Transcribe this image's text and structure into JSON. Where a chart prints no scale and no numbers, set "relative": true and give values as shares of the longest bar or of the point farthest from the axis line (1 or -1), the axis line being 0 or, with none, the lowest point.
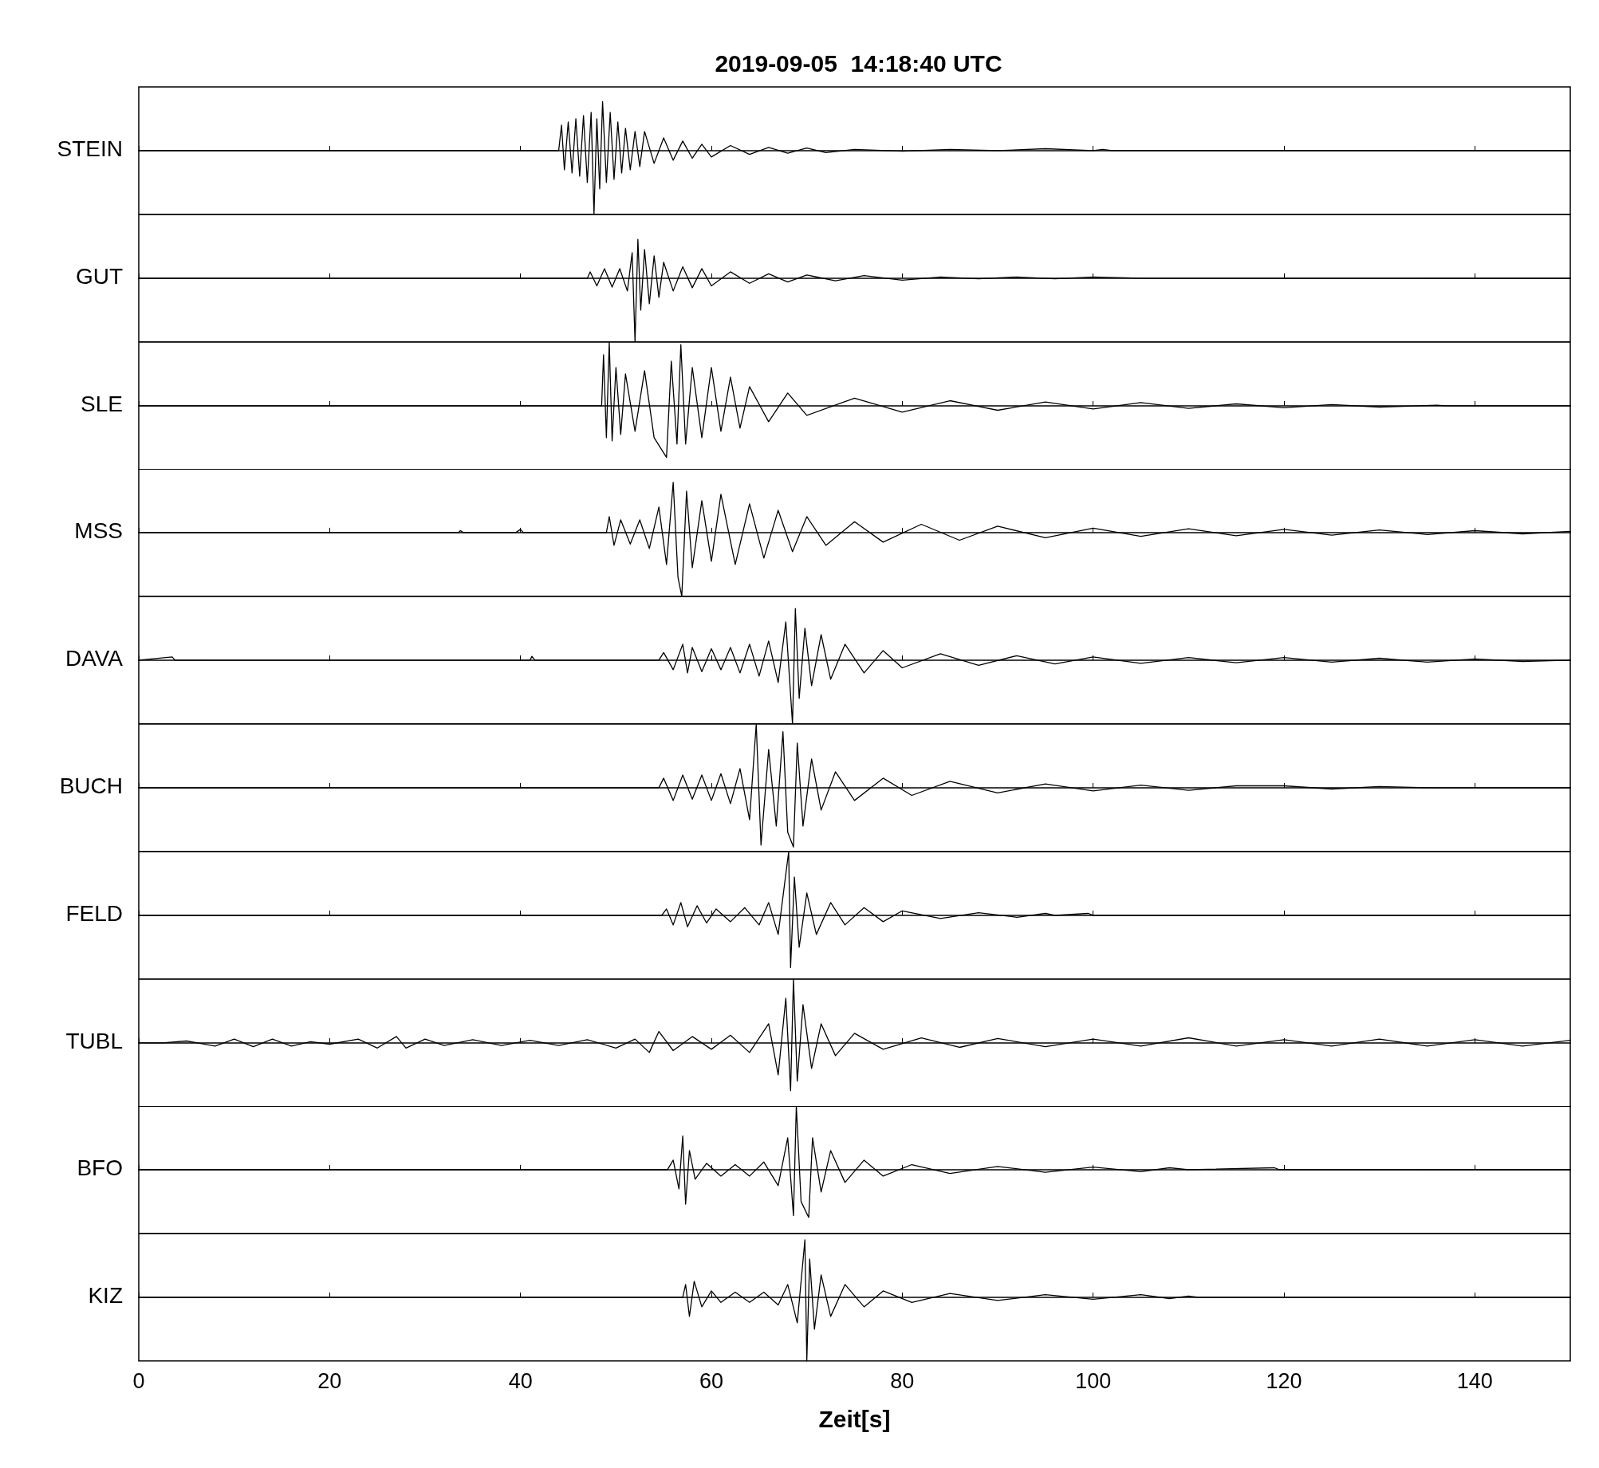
{
  "chart_data": [
    {
      "type": "line",
      "relative": true,
      "title": "2019-09-05  14:18:40 UTC",
      "ylabel": "STEIN",
      "xlim": [
        0,
        150
      ],
      "xticks": [
        0,
        20,
        40,
        60,
        80,
        100,
        120,
        140
      ],
      "tick_labels": false,
      "marker": "none",
      "line_style": "solid",
      "series": [
        {
          "color": "#000000",
          "x": [
            0,
            44,
            44.3,
            44.6,
            45,
            45.4,
            45.8,
            46.2,
            46.6,
            47,
            47.4,
            47.7,
            48,
            48.3,
            48.6,
            49,
            49.4,
            49.8,
            50.2,
            50.6,
            51,
            51.5,
            52,
            52.5,
            53,
            54,
            55,
            56,
            57,
            58,
            59,
            60,
            62,
            64,
            66,
            68,
            70,
            72,
            75,
            80,
            85,
            90,
            95,
            100,
            101,
            102,
            150
          ],
          "values": [
            0,
            0,
            0.4,
            -0.3,
            0.45,
            -0.35,
            0.5,
            -0.4,
            0.55,
            -0.5,
            0.6,
            -1,
            0.5,
            -0.6,
            0.77,
            -0.5,
            0.6,
            -0.45,
            0.45,
            -0.35,
            0.35,
            -0.3,
            0.3,
            -0.25,
            0.3,
            -0.2,
            0.2,
            -0.15,
            0.15,
            -0.12,
            0.1,
            -0.1,
            0.08,
            -0.06,
            0.05,
            -0.04,
            0.04,
            -0.03,
            0.02,
            -0.01,
            0.02,
            0,
            0.03,
            0,
            0.02,
            0,
            0
          ]
        }
      ]
    },
    {
      "type": "line",
      "relative": true,
      "ylabel": "GUT",
      "xlim": [
        0,
        150
      ],
      "xticks": [
        0,
        20,
        40,
        60,
        80,
        100,
        120,
        140
      ],
      "tick_labels": false,
      "marker": "none",
      "line_style": "solid",
      "series": [
        {
          "color": "#000000",
          "x": [
            0,
            47,
            47.3,
            48,
            48.8,
            49.6,
            50.4,
            51.2,
            51.7,
            52,
            52.3,
            52.6,
            53,
            53.5,
            54,
            54.5,
            55,
            56,
            57,
            58,
            59,
            60,
            62,
            64,
            66,
            68,
            70,
            73,
            76,
            80,
            84,
            88,
            92,
            96,
            100,
            105,
            150
          ],
          "values": [
            0,
            0,
            0.1,
            -0.12,
            0.15,
            -0.14,
            0.15,
            -0.2,
            0.4,
            -1,
            0.61,
            -0.5,
            0.45,
            -0.4,
            0.35,
            -0.3,
            0.25,
            -0.2,
            0.18,
            -0.15,
            0.15,
            -0.12,
            0.1,
            -0.08,
            0.07,
            -0.06,
            0.05,
            -0.04,
            0.04,
            -0.03,
            0.02,
            -0.01,
            0.02,
            -0.01,
            0.02,
            0,
            0
          ]
        }
      ]
    },
    {
      "type": "line",
      "relative": true,
      "ylabel": "SLE",
      "xlim": [
        0,
        150
      ],
      "xticks": [
        0,
        20,
        40,
        60,
        80,
        100,
        120,
        140
      ],
      "tick_labels": false,
      "marker": "none",
      "line_style": "solid",
      "series": [
        {
          "color": "#000000",
          "x": [
            0,
            48.5,
            48.7,
            49,
            49.3,
            49.6,
            50,
            50.5,
            51,
            52,
            53,
            54,
            55.3,
            55.8,
            56.4,
            56.8,
            57.3,
            58,
            59,
            60,
            61,
            62,
            63,
            64,
            66,
            68,
            70,
            75,
            80,
            85,
            90,
            95,
            100,
            105,
            110,
            115,
            120,
            125,
            130,
            136,
            137,
            150
          ],
          "values": [
            0,
            0,
            0.8,
            -0.5,
            1,
            -0.55,
            0.6,
            -0.45,
            0.5,
            -0.4,
            0.55,
            -0.5,
            -0.81,
            0.7,
            -0.6,
            0.96,
            -0.6,
            0.6,
            -0.5,
            0.6,
            -0.4,
            0.45,
            -0.35,
            0.3,
            -0.25,
            0.2,
            -0.15,
            0.12,
            -0.1,
            0.08,
            -0.07,
            0.06,
            -0.05,
            0.05,
            -0.04,
            0.03,
            -0.03,
            0.02,
            -0.02,
            0.01,
            0,
            0
          ]
        }
      ]
    },
    {
      "type": "line",
      "relative": true,
      "ylabel": "MSS",
      "xlim": [
        0,
        150
      ],
      "xticks": [
        0,
        20,
        40,
        60,
        80,
        100,
        120,
        140
      ],
      "tick_labels": false,
      "marker": "none",
      "line_style": "solid",
      "series": [
        {
          "color": "#000000",
          "x": [
            0,
            33.5,
            33.7,
            34,
            39.5,
            40,
            40.3,
            49,
            49.3,
            49.8,
            50.5,
            51.5,
            52.5,
            53.5,
            54.5,
            55.3,
            56,
            56.5,
            56.9,
            57.4,
            58,
            59,
            60,
            61,
            62.5,
            64,
            65.5,
            67,
            68.5,
            70,
            72,
            75,
            78,
            82,
            86,
            90,
            95,
            100,
            105,
            110,
            115,
            120,
            125,
            130,
            135,
            140,
            145,
            150
          ],
          "values": [
            0,
            0,
            0.03,
            0,
            0,
            0.05,
            0,
            0,
            0.25,
            -0.2,
            0.2,
            -0.18,
            0.2,
            -0.25,
            0.4,
            -0.5,
            0.79,
            -0.7,
            -1,
            0.65,
            -0.55,
            0.5,
            -0.45,
            0.6,
            -0.5,
            0.45,
            -0.4,
            0.35,
            -0.3,
            0.25,
            -0.2,
            0.17,
            -0.15,
            0.13,
            -0.12,
            0.1,
            -0.08,
            0.07,
            -0.06,
            0.06,
            -0.05,
            0.05,
            -0.04,
            0.04,
            -0.03,
            0.03,
            -0.02,
            0.02
          ]
        }
      ]
    },
    {
      "type": "line",
      "relative": true,
      "ylabel": "DAVA",
      "xlim": [
        0,
        150
      ],
      "xticks": [
        0,
        20,
        40,
        60,
        80,
        100,
        120,
        140
      ],
      "tick_labels": false,
      "marker": "none",
      "line_style": "solid",
      "series": [
        {
          "color": "#000000",
          "x": [
            0,
            3.5,
            3.8,
            41,
            41.2,
            41.5,
            54.5,
            55,
            56,
            57,
            57.5,
            58,
            59,
            60,
            61,
            62,
            63,
            64,
            65,
            66,
            67,
            67.8,
            68.5,
            68.8,
            69.2,
            69.8,
            70.5,
            71.5,
            72.5,
            74,
            76,
            78,
            80,
            84,
            88,
            92,
            96,
            100,
            105,
            110,
            115,
            120,
            125,
            130,
            135,
            140,
            145,
            150
          ],
          "values": [
            0,
            0.05,
            0,
            0,
            0.06,
            0,
            0,
            0.12,
            -0.15,
            0.25,
            -0.2,
            0.2,
            -0.18,
            0.18,
            -0.15,
            0.2,
            -0.2,
            0.25,
            -0.25,
            0.3,
            -0.35,
            0.6,
            -1,
            0.81,
            -0.6,
            0.5,
            -0.4,
            0.4,
            -0.3,
            0.25,
            -0.2,
            0.15,
            -0.12,
            0.1,
            -0.08,
            0.07,
            -0.06,
            0.05,
            -0.05,
            0.04,
            -0.04,
            0.04,
            -0.03,
            0.03,
            -0.03,
            0.02,
            -0.02,
            0
          ]
        }
      ]
    },
    {
      "type": "line",
      "relative": true,
      "ylabel": "BUCH",
      "xlim": [
        0,
        150
      ],
      "xticks": [
        0,
        20,
        40,
        60,
        80,
        100,
        120,
        140
      ],
      "tick_labels": false,
      "marker": "none",
      "line_style": "solid",
      "series": [
        {
          "color": "#000000",
          "x": [
            0,
            54.5,
            55,
            56,
            57,
            58,
            59,
            60,
            61,
            62,
            63,
            64,
            64.7,
            65.2,
            66,
            66.8,
            67.5,
            68,
            68.6,
            69,
            69.6,
            70.5,
            71.5,
            73,
            75,
            78,
            81,
            85,
            90,
            95,
            100,
            105,
            110,
            115,
            120,
            125,
            130,
            135,
            150
          ],
          "values": [
            0,
            0,
            0.15,
            -0.2,
            0.2,
            -0.18,
            0.2,
            -0.2,
            0.22,
            -0.25,
            0.3,
            -0.5,
            1,
            -0.9,
            0.6,
            -0.6,
            0.88,
            -0.7,
            -0.93,
            0.7,
            -0.6,
            0.45,
            -0.35,
            0.25,
            -0.2,
            0.15,
            -0.12,
            0.1,
            -0.08,
            0.06,
            -0.05,
            0.04,
            -0.04,
            0.03,
            0.03,
            -0.02,
            0.02,
            0,
            0
          ]
        }
      ]
    },
    {
      "type": "line",
      "relative": true,
      "ylabel": "FELD",
      "xlim": [
        0,
        150
      ],
      "xticks": [
        0,
        20,
        40,
        60,
        80,
        100,
        120,
        140
      ],
      "tick_labels": false,
      "marker": "none",
      "line_style": "solid",
      "series": [
        {
          "color": "#000000",
          "x": [
            0,
            54.8,
            55.3,
            56,
            56.8,
            57.5,
            58.5,
            59.5,
            60.5,
            62,
            63.5,
            65,
            66,
            67,
            68.1,
            68.3,
            68.7,
            69.2,
            70,
            71,
            72.5,
            74,
            76,
            78,
            80,
            84,
            88,
            92,
            95,
            96,
            99.5,
            100,
            150
          ],
          "values": [
            0,
            0,
            0.1,
            -0.15,
            0.2,
            -0.18,
            0.15,
            -0.12,
            0.1,
            -0.1,
            0.12,
            -0.15,
            0.2,
            -0.3,
            1,
            -0.82,
            0.6,
            -0.5,
            0.35,
            -0.3,
            0.2,
            -0.15,
            0.12,
            -0.1,
            0.07,
            -0.05,
            0.04,
            -0.03,
            0.03,
            0,
            0.03,
            0,
            0
          ]
        }
      ]
    },
    {
      "type": "line",
      "relative": true,
      "ylabel": "TUBL",
      "xlim": [
        0,
        150
      ],
      "xticks": [
        0,
        20,
        40,
        60,
        80,
        100,
        120,
        140
      ],
      "tick_labels": false,
      "marker": "none",
      "line_style": "solid",
      "series": [
        {
          "color": "#000000",
          "x": [
            0,
            2.5,
            5,
            8,
            10,
            12,
            14,
            16,
            18,
            20,
            23,
            25,
            27,
            28,
            30,
            32,
            35,
            38,
            41,
            44,
            47,
            50,
            52,
            53.5,
            54.5,
            56,
            58,
            60,
            62,
            64,
            66,
            67,
            67.8,
            68.3,
            68.6,
            69,
            69.6,
            70.5,
            71.5,
            73,
            75,
            78,
            82,
            86,
            90,
            95,
            100,
            105,
            110,
            115,
            120,
            125,
            130,
            135,
            140,
            145,
            150
          ],
          "values": [
            0,
            0,
            0.03,
            -0.05,
            0.06,
            -0.06,
            0.06,
            -0.05,
            0.02,
            -0.02,
            0.06,
            -0.08,
            0.1,
            -0.08,
            0.06,
            -0.04,
            0.05,
            -0.04,
            0.04,
            -0.04,
            0.05,
            -0.08,
            0.06,
            -0.15,
            0.18,
            -0.12,
            0.1,
            -0.1,
            0.12,
            -0.15,
            0.3,
            -0.5,
            0.7,
            -0.75,
            1,
            -0.6,
            0.6,
            -0.4,
            0.3,
            -0.2,
            0.15,
            -0.1,
            0.08,
            -0.07,
            0.07,
            -0.06,
            0.06,
            -0.05,
            0.08,
            -0.05,
            0.05,
            -0.05,
            0.06,
            -0.05,
            0.05,
            -0.05,
            0.04
          ]
        }
      ]
    },
    {
      "type": "line",
      "relative": true,
      "ylabel": "BFO",
      "xlim": [
        0,
        150
      ],
      "xticks": [
        0,
        20,
        40,
        60,
        80,
        100,
        120,
        140
      ],
      "tick_labels": false,
      "marker": "none",
      "line_style": "solid",
      "series": [
        {
          "color": "#000000",
          "x": [
            0,
            55.4,
            56,
            56.6,
            57,
            57.3,
            57.7,
            58.3,
            59.5,
            61,
            62.5,
            64,
            65.5,
            67,
            68,
            68.6,
            68.9,
            69.4,
            70.2,
            70.6,
            71.5,
            72.5,
            74,
            76,
            78,
            81,
            85,
            90,
            95,
            100,
            105,
            108,
            110,
            119,
            119.5,
            150
          ],
          "values": [
            0,
            0,
            0.15,
            -0.3,
            0.53,
            -0.54,
            0.3,
            -0.15,
            0.1,
            -0.1,
            0.08,
            -0.1,
            0.12,
            -0.25,
            0.5,
            -0.72,
            1,
            -0.5,
            -0.75,
            0.5,
            -0.35,
            0.3,
            -0.2,
            0.15,
            -0.1,
            0.08,
            -0.06,
            0.05,
            -0.04,
            0.04,
            -0.03,
            0.03,
            0,
            0.03,
            0,
            0
          ]
        }
      ]
    },
    {
      "type": "line",
      "relative": true,
      "ylabel": "KIZ",
      "xlabel": "Zeit[s]",
      "xlim": [
        0,
        150
      ],
      "xticks": [
        0,
        20,
        40,
        60,
        80,
        100,
        120,
        140
      ],
      "tick_labels": "x",
      "marker": "none",
      "line_style": "solid",
      "series": [
        {
          "color": "#000000",
          "x": [
            0,
            57,
            57.3,
            57.7,
            58.2,
            59,
            60,
            61,
            62.5,
            64,
            65.5,
            67,
            68,
            69,
            69.8,
            70,
            70.3,
            70.8,
            71.5,
            72.5,
            74,
            76,
            78,
            81,
            85,
            90,
            95,
            100,
            105,
            108,
            110,
            111,
            150
          ],
          "values": [
            0,
            0,
            0.2,
            -0.3,
            0.25,
            -0.15,
            0.1,
            -0.08,
            0.08,
            -0.08,
            0.08,
            -0.12,
            0.2,
            -0.4,
            0.9,
            -1,
            0.6,
            -0.5,
            0.35,
            -0.3,
            0.2,
            -0.15,
            0.1,
            -0.08,
            0.06,
            -0.05,
            0.04,
            -0.03,
            0.04,
            -0.02,
            0.02,
            0,
            0
          ]
        }
      ]
    }
  ]
}
